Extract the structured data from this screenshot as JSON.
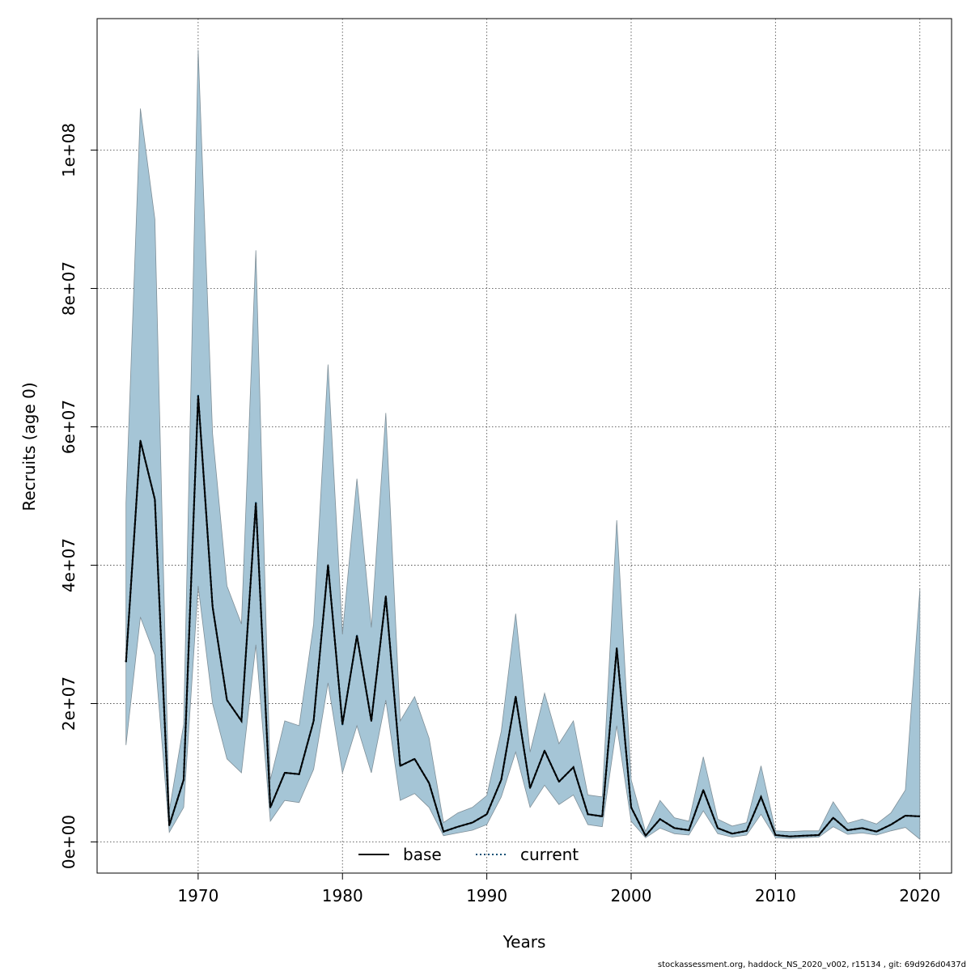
{
  "chart_data": {
    "type": "line",
    "title": "",
    "xlabel": "Years",
    "ylabel": "Recruits (age 0)",
    "xlim": [
      1963,
      2022.2
    ],
    "ylim": [
      -4500000,
      119000000
    ],
    "grid": true,
    "x_ticks": [
      1970,
      1980,
      1990,
      2000,
      2010,
      2020
    ],
    "x_tick_labels": [
      "1970",
      "1980",
      "1990",
      "2000",
      "2010",
      "2020"
    ],
    "y_ticks": [
      0,
      20000000,
      40000000,
      60000000,
      80000000,
      100000000
    ],
    "y_tick_labels": [
      "0e+00",
      "2e+07",
      "4e+07",
      "6e+07",
      "8e+07",
      "1e+08"
    ],
    "legend": {
      "position": "bottom-center",
      "entries": [
        {
          "label": "base",
          "style": "solid",
          "color": "#000000"
        },
        {
          "label": "current",
          "style": "dotted",
          "color": "#0b4f74"
        }
      ]
    },
    "band_color": "#a5c5d6",
    "band_edge_color": "#7f8f98",
    "x": [
      1965,
      1966,
      1967,
      1968,
      1969,
      1970,
      1971,
      1972,
      1973,
      1974,
      1975,
      1976,
      1977,
      1978,
      1979,
      1980,
      1981,
      1982,
      1983,
      1984,
      1985,
      1986,
      1987,
      1988,
      1989,
      1990,
      1991,
      1992,
      1993,
      1994,
      1995,
      1996,
      1997,
      1998,
      1999,
      2000,
      2001,
      2002,
      2003,
      2004,
      2005,
      2006,
      2007,
      2008,
      2009,
      2010,
      2011,
      2012,
      2013,
      2014,
      2015,
      2016,
      2017,
      2018,
      2019,
      2020
    ],
    "series": [
      {
        "name": "base",
        "values": [
          26000000,
          58000000,
          49500000,
          2400000,
          9000000,
          64500000,
          34000000,
          20500000,
          17500000,
          49000000,
          5000000,
          10000000,
          9800000,
          17500000,
          40000000,
          17000000,
          29800000,
          17500000,
          35500000,
          11000000,
          12000000,
          8500000,
          1500000,
          2200000,
          2800000,
          4000000,
          9000000,
          21000000,
          7800000,
          13200000,
          8700000,
          10800000,
          4000000,
          3700000,
          28000000,
          5000000,
          900000,
          3300000,
          2000000,
          1700000,
          7500000,
          2000000,
          1200000,
          1600000,
          6500000,
          1000000,
          800000,
          900000,
          1000000,
          3500000,
          1700000,
          2000000,
          1500000,
          2500000,
          3800000,
          3700000
        ]
      },
      {
        "name": "current",
        "values": [
          26000000,
          58000000,
          49500000,
          2400000,
          9000000,
          64500000,
          34000000,
          20500000,
          17500000,
          49000000,
          5000000,
          10000000,
          9800000,
          17500000,
          40000000,
          17000000,
          29800000,
          17500000,
          35500000,
          11000000,
          12000000,
          8500000,
          1500000,
          2200000,
          2800000,
          4000000,
          9000000,
          21000000,
          7800000,
          13200000,
          8700000,
          10800000,
          4000000,
          3700000,
          28000000,
          5000000,
          900000,
          3300000,
          2000000,
          1700000,
          7500000,
          2000000,
          1200000,
          1600000,
          6500000,
          1000000,
          800000,
          900000,
          1000000,
          3500000,
          1700000,
          2000000,
          1500000,
          2500000,
          3800000,
          3700000
        ]
      }
    ],
    "band_upper": [
      49000000,
      106000000,
      90000000,
      4500000,
      17000000,
      114500000,
      59000000,
      37000000,
      31500000,
      85500000,
      9000000,
      17500000,
      16800000,
      31500000,
      69000000,
      30000000,
      52500000,
      31000000,
      62000000,
      17500000,
      21000000,
      15000000,
      2800000,
      4200000,
      5000000,
      6700000,
      16000000,
      33000000,
      13000000,
      21500000,
      14200000,
      17500000,
      6800000,
      6500000,
      46500000,
      9000000,
      1500000,
      6000000,
      3500000,
      3000000,
      12300000,
      3300000,
      2300000,
      2800000,
      11000000,
      1600000,
      1500000,
      1600000,
      1600000,
      5800000,
      2700000,
      3300000,
      2600000,
      4200000,
      7500000,
      36500000
    ],
    "band_lower": [
      14000000,
      32500000,
      27000000,
      1400000,
      5000000,
      37000000,
      20000000,
      12000000,
      10000000,
      28500000,
      3000000,
      6000000,
      5700000,
      10500000,
      23000000,
      10000000,
      16800000,
      10000000,
      20500000,
      6000000,
      7000000,
      5000000,
      900000,
      1300000,
      1700000,
      2500000,
      6500000,
      13000000,
      5000000,
      8200000,
      5400000,
      6800000,
      2500000,
      2200000,
      16800000,
      3000000,
      600000,
      2000000,
      1200000,
      1000000,
      4500000,
      1200000,
      700000,
      1000000,
      4000000,
      600000,
      500000,
      600000,
      700000,
      2200000,
      1100000,
      1300000,
      1000000,
      1600000,
      2100000,
      400000
    ]
  },
  "footer": "stockassessment.org, haddock_NS_2020_v002, r15134 , git: 69d926d0437d"
}
